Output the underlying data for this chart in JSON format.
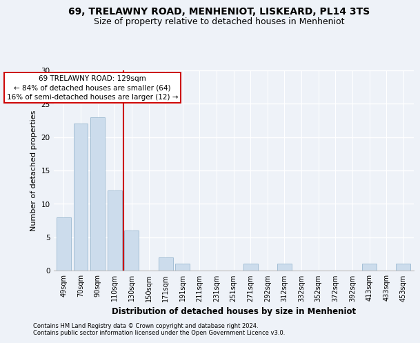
{
  "title1": "69, TRELAWNY ROAD, MENHENIOT, LISKEARD, PL14 3TS",
  "title2": "Size of property relative to detached houses in Menheniot",
  "xlabel": "Distribution of detached houses by size in Menheniot",
  "ylabel": "Number of detached properties",
  "categories": [
    "49sqm",
    "70sqm",
    "90sqm",
    "110sqm",
    "130sqm",
    "150sqm",
    "171sqm",
    "191sqm",
    "211sqm",
    "231sqm",
    "251sqm",
    "271sqm",
    "292sqm",
    "312sqm",
    "332sqm",
    "352sqm",
    "372sqm",
    "392sqm",
    "413sqm",
    "433sqm",
    "453sqm"
  ],
  "values": [
    8,
    22,
    23,
    12,
    6,
    0,
    2,
    1,
    0,
    0,
    0,
    1,
    0,
    1,
    0,
    0,
    0,
    0,
    1,
    0,
    1
  ],
  "bar_color": "#ccdcec",
  "bar_edge_color": "#9ab8d0",
  "ylim": [
    0,
    30
  ],
  "yticks": [
    0,
    5,
    10,
    15,
    20,
    25,
    30
  ],
  "red_line_x": 3.5,
  "red_line_color": "#cc0000",
  "annotation_box_color": "#ffffff",
  "annotation_box_edge": "#cc0000",
  "marker_label": "69 TRELAWNY ROAD: 129sqm",
  "annotation_line1": "← 84% of detached houses are smaller (64)",
  "annotation_line2": "16% of semi-detached houses are larger (12) →",
  "footer1": "Contains HM Land Registry data © Crown copyright and database right 2024.",
  "footer2": "Contains public sector information licensed under the Open Government Licence v3.0.",
  "background_color": "#eef2f8",
  "grid_color": "#ffffff",
  "title1_fontsize": 10,
  "title2_fontsize": 9,
  "tick_fontsize": 7,
  "ylabel_fontsize": 8,
  "xlabel_fontsize": 8.5,
  "annot_fontsize": 7.5,
  "footer_fontsize": 6
}
